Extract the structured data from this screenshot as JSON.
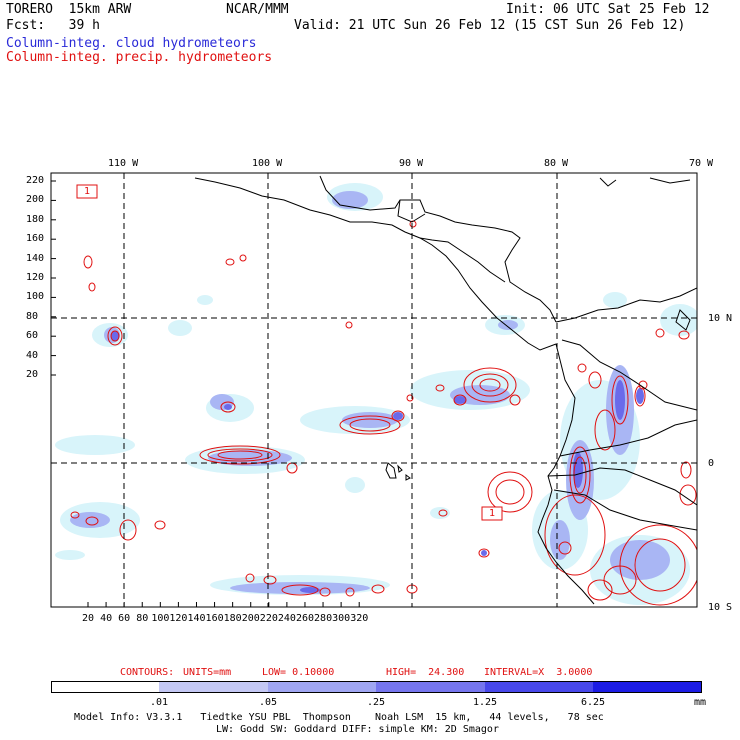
{
  "header": {
    "model": "TORERO  15km ARW",
    "org": "NCAR/MMM",
    "init": "Init: 06 UTC Sat 25 Feb 12",
    "fcst": "Fcst:   39 h",
    "valid": "Valid: 21 UTC Sun 26 Feb 12 (15 CST Sun 26 Feb 12)",
    "field_cloud": "Column-integ. cloud hydrometeors",
    "field_precip": "Column-integ. precip. hydrometeors"
  },
  "map": {
    "top_lon_labels": [
      "110 W",
      "100 W",
      "90 W",
      "80 W",
      "70 W"
    ],
    "right_lat_labels": [
      "10 N",
      "0",
      "10 S"
    ],
    "y_ticks": [
      "220",
      "200",
      "180",
      "160",
      "140",
      "120",
      "100",
      "80",
      "60",
      "40",
      "20"
    ],
    "x_ticks": [
      "20",
      "40",
      "60",
      "80",
      "100",
      "120",
      "140",
      "160",
      "180",
      "200",
      "220",
      "240",
      "260",
      "280",
      "300",
      "320"
    ],
    "contour_labels": [
      "1",
      "1"
    ],
    "colors": {
      "cloud": "#a9b6f4",
      "precip_contour": "#e01010",
      "coast": "#000000"
    }
  },
  "contours": {
    "label": "CONTOURS:",
    "units": "UNITS=mm",
    "low": "LOW= 0.10000",
    "high": "HIGH=  24.300",
    "interval": "INTERVAL=X  3.0000"
  },
  "colorbar": {
    "levels": [
      ".01",
      ".05",
      ".25",
      "1.25",
      "6.25"
    ],
    "unit": "mm",
    "colors": [
      "#ffffff",
      "#d8f4fa",
      "#c4c8f4",
      "#a0a6f2",
      "#7676ee",
      "#4848ea",
      "#1c1ce4"
    ]
  },
  "footer": {
    "line1": "Model Info: V3.3.1   Tiedtke YSU PBL  Thompson    Noah LSM  15 km,   44 levels,   78 sec",
    "line2": "LW: Godd SW: Goddard DIFF: simple KM: 2D Smagor"
  }
}
